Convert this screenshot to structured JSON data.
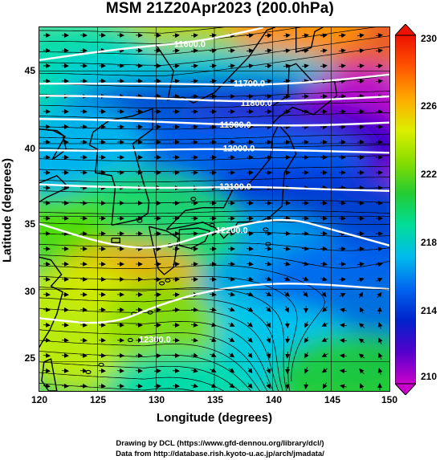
{
  "title": "MSM 21Z20Apr2023 (200.0hPa)",
  "xlabel": "Longitude (degrees)",
  "ylabel": "Latitude  (degrees)",
  "x_ticks": [
    "120",
    "125",
    "130",
    "135",
    "140",
    "145",
    "150"
  ],
  "y_ticks": [
    "25",
    "30",
    "35",
    "40",
    "45"
  ],
  "colorbar": {
    "ticks": [
      "210",
      "214",
      "218",
      "222",
      "226",
      "230"
    ],
    "range": [
      210,
      230
    ],
    "colors": [
      "#cc00cc",
      "#5500cc",
      "#0022cc",
      "#0066ee",
      "#00bbee",
      "#00dd99",
      "#22cc33",
      "#88dd00",
      "#ddee00",
      "#ffaa00",
      "#ff5500",
      "#ee1100"
    ]
  },
  "map": {
    "lon_range": [
      120,
      150
    ],
    "lat_range": [
      23,
      48
    ],
    "contour_labels": [
      "11600.0",
      "11700.0",
      "11800.0",
      "11900.0",
      "12000.0",
      "12100.0",
      "12200.0",
      "12300.0"
    ]
  },
  "credits": {
    "line1": "Drawing by DCL (https://www.gfd-dennou.org/library/dcl/)",
    "line2": "Data from http://database.rish.kyoto-u.ac.jp/arch/jmadata/"
  }
}
